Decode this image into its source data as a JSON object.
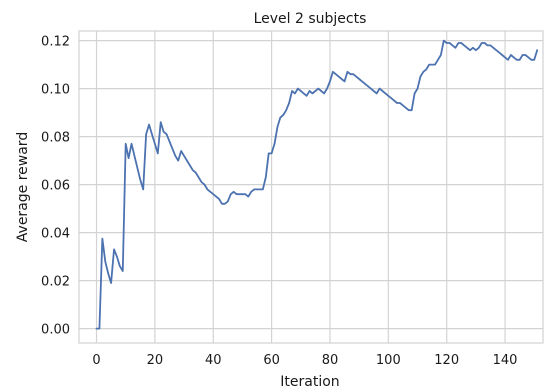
{
  "chart_data": {
    "type": "line",
    "title": "Level 2 subjects",
    "xlabel": "Iteration",
    "ylabel": "Average reward",
    "xlim": [
      -6,
      153
    ],
    "ylim": [
      -0.006,
      0.124
    ],
    "grid": true,
    "xticks": [
      0,
      20,
      40,
      60,
      80,
      100,
      120,
      140
    ],
    "yticks": [
      0.0,
      0.02,
      0.04,
      0.06,
      0.08,
      0.1,
      0.12
    ],
    "xtick_labels": [
      "0",
      "20",
      "40",
      "60",
      "80",
      "100",
      "120",
      "140"
    ],
    "ytick_labels": [
      "0.00",
      "0.02",
      "0.04",
      "0.06",
      "0.08",
      "0.10",
      "0.12"
    ],
    "line_color": "#4c72b0",
    "series": [
      {
        "x": [
          0,
          1,
          2,
          3,
          4,
          5,
          6,
          7,
          8,
          9,
          10,
          11,
          12,
          13,
          14,
          15,
          16,
          17,
          18,
          19,
          20,
          21,
          22,
          23,
          24,
          25,
          26,
          27,
          28,
          29,
          30,
          31,
          32,
          33,
          34,
          35,
          36,
          37,
          38,
          39,
          40,
          41,
          42,
          43,
          44,
          45,
          46,
          47,
          48,
          49,
          50,
          51,
          52,
          53,
          54,
          55,
          56,
          57,
          58,
          59,
          60,
          61,
          62,
          63,
          64,
          65,
          66,
          67,
          68,
          69,
          70,
          71,
          72,
          73,
          74,
          75,
          76,
          77,
          78,
          79,
          80,
          81,
          82,
          83,
          84,
          85,
          86,
          87,
          88,
          89,
          90,
          91,
          92,
          93,
          94,
          95,
          96,
          97,
          98,
          99,
          100,
          101,
          102,
          103,
          104,
          105,
          106,
          107,
          108,
          109,
          110,
          111,
          112,
          113,
          114,
          115,
          116,
          117,
          118,
          119,
          120,
          121,
          122,
          123,
          124,
          125,
          126,
          127,
          128,
          129,
          130,
          131,
          132,
          133,
          134,
          135,
          136,
          137,
          138,
          139,
          140,
          141,
          142,
          143,
          144,
          145,
          146,
          147,
          148,
          149,
          150,
          151
        ],
        "y": [
          0.0,
          0.0,
          0.0375,
          0.028,
          0.023,
          0.019,
          0.033,
          0.03,
          0.026,
          0.024,
          0.077,
          0.071,
          0.077,
          0.072,
          0.067,
          0.062,
          0.058,
          0.081,
          0.085,
          0.081,
          0.077,
          0.073,
          0.086,
          0.082,
          0.081,
          0.078,
          0.075,
          0.072,
          0.07,
          0.074,
          0.072,
          0.07,
          0.068,
          0.066,
          0.065,
          0.063,
          0.061,
          0.06,
          0.058,
          0.057,
          0.056,
          0.055,
          0.054,
          0.052,
          0.052,
          0.053,
          0.056,
          0.057,
          0.056,
          0.056,
          0.056,
          0.056,
          0.055,
          0.057,
          0.058,
          0.058,
          0.058,
          0.058,
          0.063,
          0.073,
          0.073,
          0.077,
          0.084,
          0.088,
          0.089,
          0.091,
          0.094,
          0.099,
          0.098,
          0.1,
          0.099,
          0.098,
          0.097,
          0.099,
          0.098,
          0.099,
          0.1,
          0.099,
          0.098,
          0.1,
          0.103,
          0.107,
          0.106,
          0.105,
          0.104,
          0.103,
          0.107,
          0.106,
          0.106,
          0.105,
          0.104,
          0.103,
          0.102,
          0.101,
          0.1,
          0.099,
          0.098,
          0.1,
          0.099,
          0.098,
          0.097,
          0.096,
          0.095,
          0.094,
          0.094,
          0.093,
          0.092,
          0.091,
          0.091,
          0.098,
          0.1,
          0.105,
          0.107,
          0.108,
          0.11,
          0.11,
          0.11,
          0.112,
          0.114,
          0.12,
          0.119,
          0.119,
          0.118,
          0.117,
          0.119,
          0.119,
          0.118,
          0.117,
          0.116,
          0.117,
          0.116,
          0.117,
          0.119,
          0.119,
          0.118,
          0.118,
          0.117,
          0.116,
          0.115,
          0.114,
          0.113,
          0.112,
          0.114,
          0.113,
          0.112,
          0.112,
          0.114,
          0.114,
          0.113,
          0.112,
          0.112,
          0.116
        ]
      }
    ]
  }
}
